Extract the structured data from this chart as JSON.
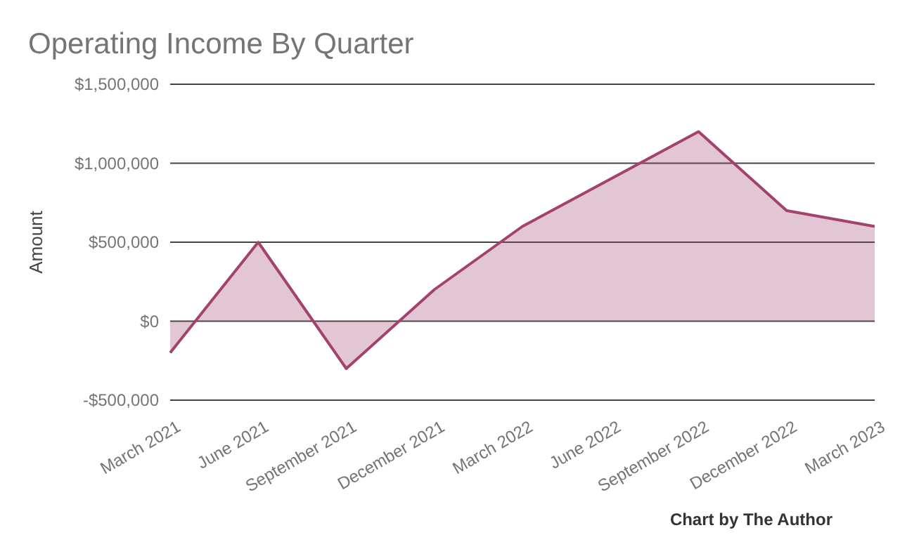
{
  "chart_data": {
    "type": "area",
    "title": "Operating Income By Quarter",
    "ylabel": "Amount",
    "annotations": [
      "Chart by The Author"
    ],
    "categories": [
      "March 2021",
      "June 2021",
      "September 2021",
      "December 2021",
      "March 2022",
      "June 2022",
      "September 2022",
      "December 2022",
      "March 2023"
    ],
    "series": [
      {
        "color": "#a3426f",
        "values": [
          -200000,
          500000,
          -300000,
          200000,
          600000,
          900000,
          1200000,
          700000,
          600000
        ]
      }
    ],
    "ylim": [
      -500000,
      1500000
    ],
    "yticks": [
      {
        "value": -500000,
        "label": "-$500,000"
      },
      {
        "value": 0,
        "label": "$0"
      },
      {
        "value": 500000,
        "label": "$500,000"
      },
      {
        "value": 1000000,
        "label": "$1,000,000"
      },
      {
        "value": 1500000,
        "label": "$1,500,000"
      }
    ],
    "grid": "y"
  }
}
